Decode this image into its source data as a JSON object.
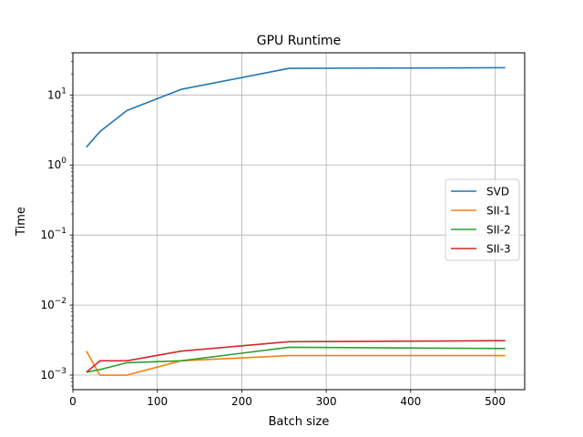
{
  "chart_data": {
    "type": "line",
    "title": "GPU Runtime",
    "xlabel": "Batch size",
    "ylabel": "Time",
    "xlim": [
      0,
      535
    ],
    "ylim": [
      0.00062,
      40
    ],
    "yscale": "log",
    "grid": true,
    "legend": "center-right",
    "x_ticks": [
      0,
      100,
      200,
      300,
      400,
      500
    ],
    "y_ticks": [
      {
        "value": 0.001,
        "base": "10",
        "exp": "−3"
      },
      {
        "value": 0.01,
        "base": "10",
        "exp": "−2"
      },
      {
        "value": 0.1,
        "base": "10",
        "exp": "−1"
      },
      {
        "value": 1,
        "base": "10",
        "exp": "0"
      },
      {
        "value": 10,
        "base": "10",
        "exp": "1"
      }
    ],
    "x": [
      16,
      32,
      64,
      128,
      256,
      512
    ],
    "series": [
      {
        "name": "SVD",
        "color": "#1f77b4",
        "values": [
          1.8,
          3.0,
          6.0,
          12.0,
          24.0,
          24.5
        ]
      },
      {
        "name": "SII-1",
        "color": "#ff7f0e",
        "values": [
          0.0022,
          0.001,
          0.001,
          0.0016,
          0.0019,
          0.0019
        ]
      },
      {
        "name": "SII-2",
        "color": "#2ca02c",
        "values": [
          0.0011,
          0.0012,
          0.0015,
          0.0016,
          0.0025,
          0.0024
        ]
      },
      {
        "name": "SII-3",
        "color": "#d62728",
        "values": [
          0.0011,
          0.0016,
          0.0016,
          0.0022,
          0.003,
          0.0031
        ]
      }
    ]
  }
}
